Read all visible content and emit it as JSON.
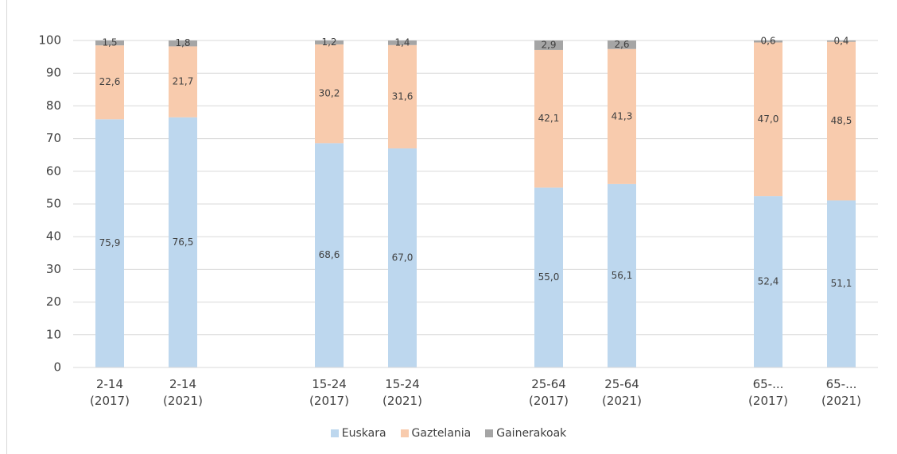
{
  "chart_data": {
    "type": "stacked_bar",
    "categories": [
      "2-14\n(2017)",
      "2-14\n(2021)",
      null,
      "15-24\n(2017)",
      "15-24\n(2021)",
      null,
      "25-64\n(2017)",
      "25-64\n(2021)",
      null,
      "65-...\n(2017)",
      "65-...\n(2021)"
    ],
    "series": [
      {
        "name": "Euskara",
        "color": "#bdd7ee",
        "values": [
          75.9,
          76.5,
          null,
          68.6,
          67.0,
          null,
          55.0,
          56.1,
          null,
          52.4,
          51.1
        ],
        "value_labels": [
          "75,9",
          "76,5",
          null,
          "68,6",
          "67,0",
          null,
          "55,0",
          "56,1",
          null,
          "52,4",
          "51,1"
        ]
      },
      {
        "name": "Gaztelania",
        "color": "#f8cbad",
        "values": [
          22.6,
          21.7,
          null,
          30.2,
          31.6,
          null,
          42.1,
          41.3,
          null,
          47.0,
          48.5
        ],
        "value_labels": [
          "22,6",
          "21,7",
          null,
          "30,2",
          "31,6",
          null,
          "42,1",
          "41,3",
          null,
          "47,0",
          "48,5"
        ]
      },
      {
        "name": "Gainerakoak",
        "color": "#a5a5a5",
        "values": [
          1.5,
          1.8,
          null,
          1.2,
          1.4,
          null,
          2.9,
          2.6,
          null,
          0.6,
          0.4
        ],
        "value_labels": [
          "1,5",
          "1,8",
          null,
          "1,2",
          "1,4",
          null,
          "2,9",
          "2,6",
          null,
          "0,6",
          "0,4"
        ]
      }
    ],
    "ylim": [
      0,
      100
    ],
    "yticks": [
      0,
      10,
      20,
      30,
      40,
      50,
      60,
      70,
      80,
      90,
      100
    ],
    "grid": true,
    "legend": "bottom"
  }
}
